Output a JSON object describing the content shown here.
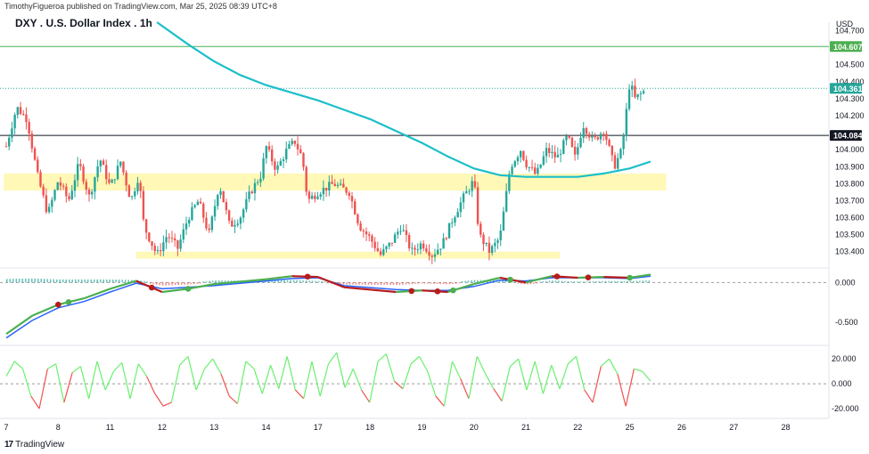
{
  "header": {
    "publisher": "TimothyFigueroa published on TradingView.com, Mar 25, 2025 08:39 UTC+8",
    "title": "DXY . U.S. Dollar Index . 1h",
    "currency": "USD",
    "brand": "TradingView",
    "brand_logo": "17"
  },
  "colors": {
    "up": "#26a69a",
    "down": "#ef5350",
    "ma": "#1bbfc9",
    "zone": "#fff59d",
    "hline_green": "#4caf50",
    "hline_black": "#131722",
    "macd_green": "#4caf50",
    "macd_red": "#b71c1c",
    "macd_blue": "#2962ff",
    "osc_green": "#69f06e",
    "osc_red": "#ef5350"
  },
  "chart_data": [
    {
      "type": "candlestick",
      "title": "DXY . U.S. Dollar Index . 1h",
      "ylim": [
        103.32,
        104.75
      ],
      "y_ticks": [
        "104.700",
        "104.500",
        "104.400",
        "104.300",
        "104.200",
        "104.000",
        "103.900",
        "103.800",
        "103.700",
        "103.600",
        "103.500",
        "103.400"
      ],
      "x_ticks": [
        "7",
        "8",
        "11",
        "12",
        "13",
        "14",
        "17",
        "18",
        "19",
        "20",
        "21",
        "22",
        "25",
        "26",
        "27",
        "28"
      ],
      "price_badges": [
        {
          "label": "104.607",
          "value": 104.607,
          "color": "#4caf50"
        },
        {
          "label": "104.361",
          "value": 104.361,
          "color": "#26a69a"
        },
        {
          "label": "104.084",
          "value": 104.084,
          "color": "#131722"
        }
      ],
      "hlines": [
        {
          "value": 104.607,
          "style": "solid",
          "color": "#4caf50"
        },
        {
          "value": 104.361,
          "style": "dotted",
          "color": "#26a69a"
        },
        {
          "value": 104.084,
          "style": "solid",
          "color": "#131722"
        }
      ],
      "zones": [
        {
          "from_day": -0.05,
          "to_day": 12.7,
          "low": 103.76,
          "high": 103.86
        },
        {
          "from_day": 2.5,
          "to_day": 10.65,
          "low": 103.36,
          "high": 103.4
        }
      ],
      "close_path": [
        [
          0,
          104.02
        ],
        [
          0.2,
          104.25
        ],
        [
          0.4,
          104.18
        ],
        [
          0.6,
          103.85
        ],
        [
          0.8,
          103.62
        ],
        [
          1.0,
          103.82
        ],
        [
          1.2,
          103.7
        ],
        [
          1.4,
          103.92
        ],
        [
          1.6,
          103.72
        ],
        [
          1.8,
          103.95
        ],
        [
          2.0,
          103.78
        ],
        [
          2.2,
          103.93
        ],
        [
          2.4,
          103.7
        ],
        [
          2.55,
          103.85
        ],
        [
          2.65,
          103.55
        ],
        [
          2.9,
          103.38
        ],
        [
          3.1,
          103.5
        ],
        [
          3.3,
          103.42
        ],
        [
          3.5,
          103.6
        ],
        [
          3.7,
          103.7
        ],
        [
          3.9,
          103.5
        ],
        [
          4.1,
          103.8
        ],
        [
          4.3,
          103.55
        ],
        [
          4.5,
          103.6
        ],
        [
          4.7,
          103.75
        ],
        [
          4.9,
          103.85
        ],
        [
          5.0,
          104.02
        ],
        [
          5.2,
          103.88
        ],
        [
          5.4,
          104.0
        ],
        [
          5.55,
          104.05
        ],
        [
          5.7,
          103.95
        ],
        [
          5.8,
          103.7
        ],
        [
          6.0,
          103.75
        ],
        [
          6.3,
          103.8
        ],
        [
          6.6,
          103.75
        ],
        [
          6.8,
          103.55
        ],
        [
          7.0,
          103.48
        ],
        [
          7.2,
          103.38
        ],
        [
          7.4,
          103.45
        ],
        [
          7.6,
          103.55
        ],
        [
          7.8,
          103.4
        ],
        [
          8.0,
          103.45
        ],
        [
          8.2,
          103.38
        ],
        [
          8.4,
          103.45
        ],
        [
          8.6,
          103.6
        ],
        [
          8.8,
          103.72
        ],
        [
          9.0,
          103.82
        ],
        [
          9.1,
          103.5
        ],
        [
          9.3,
          103.4
        ],
        [
          9.5,
          103.48
        ],
        [
          9.7,
          103.9
        ],
        [
          9.9,
          104.0
        ],
        [
          10.0,
          103.92
        ],
        [
          10.2,
          103.85
        ],
        [
          10.4,
          104.0
        ],
        [
          10.6,
          103.95
        ],
        [
          10.8,
          104.08
        ],
        [
          10.95,
          103.95
        ],
        [
          11.1,
          104.15
        ],
        [
          11.3,
          104.05
        ],
        [
          11.5,
          104.12
        ],
        [
          11.7,
          103.9
        ],
        [
          11.85,
          104.0
        ],
        [
          12.0,
          104.4
        ],
        [
          12.1,
          104.3
        ],
        [
          12.3,
          104.35
        ]
      ],
      "ma_path": [
        [
          2.9,
          104.75
        ],
        [
          3.5,
          104.62
        ],
        [
          4.0,
          104.52
        ],
        [
          4.5,
          104.44
        ],
        [
          5.0,
          104.38
        ],
        [
          6.0,
          104.29
        ],
        [
          7.0,
          104.18
        ],
        [
          8.0,
          104.04
        ],
        [
          8.5,
          103.96
        ],
        [
          9.0,
          103.89
        ],
        [
          9.5,
          103.85
        ],
        [
          10.0,
          103.84
        ],
        [
          10.5,
          103.84
        ],
        [
          11.0,
          103.84
        ],
        [
          11.5,
          103.86
        ],
        [
          12.0,
          103.89
        ],
        [
          12.4,
          103.93
        ]
      ],
      "series": [
        {
          "name": "DXY 1h candles"
        },
        {
          "name": "Moving average"
        }
      ]
    },
    {
      "type": "line",
      "name": "MACD-style oscillator",
      "ylim": [
        -0.75,
        0.15
      ],
      "y_ticks": [
        "0.000",
        "-0.500"
      ],
      "fast": [
        [
          0,
          -0.65
        ],
        [
          0.5,
          -0.42
        ],
        [
          1.0,
          -0.28
        ],
        [
          1.5,
          -0.2
        ],
        [
          2.0,
          -0.08
        ],
        [
          2.5,
          0.02
        ],
        [
          3.0,
          -0.12
        ],
        [
          3.5,
          -0.08
        ],
        [
          4.0,
          -0.02
        ],
        [
          5.0,
          0.04
        ],
        [
          5.5,
          0.08
        ],
        [
          6.0,
          0.07
        ],
        [
          6.5,
          -0.06
        ],
        [
          7.5,
          -0.12
        ],
        [
          8.0,
          -0.1
        ],
        [
          8.5,
          -0.12
        ],
        [
          9.0,
          -0.02
        ],
        [
          9.5,
          0.06
        ],
        [
          10.0,
          0.0
        ],
        [
          10.5,
          0.08
        ],
        [
          11.0,
          0.06
        ],
        [
          11.5,
          0.07
        ],
        [
          12.0,
          0.06
        ],
        [
          12.4,
          0.1
        ]
      ],
      "slow": [
        [
          0,
          -0.7
        ],
        [
          0.5,
          -0.48
        ],
        [
          1.0,
          -0.32
        ],
        [
          1.5,
          -0.24
        ],
        [
          2.0,
          -0.12
        ],
        [
          2.5,
          -0.01
        ],
        [
          3.0,
          -0.08
        ],
        [
          3.5,
          -0.06
        ],
        [
          4.0,
          -0.04
        ],
        [
          5.0,
          0.02
        ],
        [
          5.5,
          0.05
        ],
        [
          6.0,
          0.06
        ],
        [
          6.5,
          -0.04
        ],
        [
          7.5,
          -0.09
        ],
        [
          8.0,
          -0.1
        ],
        [
          8.5,
          -0.1
        ],
        [
          9.0,
          -0.05
        ],
        [
          9.5,
          0.03
        ],
        [
          10.0,
          0.02
        ],
        [
          10.5,
          0.06
        ],
        [
          11.0,
          0.06
        ],
        [
          11.5,
          0.06
        ],
        [
          12.0,
          0.05
        ],
        [
          12.4,
          0.08
        ]
      ],
      "cross_up": [
        1.2,
        3.5,
        8.6,
        9.7,
        12.0
      ],
      "cross_down": [
        1.0,
        2.8,
        5.8,
        7.8,
        8.3,
        10.6,
        11.2
      ]
    },
    {
      "type": "line",
      "name": "Momentum oscillator",
      "ylim": [
        -25,
        28
      ],
      "y_ticks": [
        "20.000",
        "0.000",
        "-20.000"
      ],
      "values": [
        6,
        18,
        12,
        -10,
        -20,
        12,
        16,
        -15,
        9,
        14,
        -12,
        18,
        -5,
        10,
        17,
        -12,
        16,
        6,
        -8,
        -18,
        -15,
        15,
        22,
        -5,
        12,
        20,
        8,
        -10,
        -16,
        18,
        12,
        -8,
        15,
        -4,
        22,
        -5,
        -12,
        18,
        -10,
        16,
        25,
        -3,
        12,
        -5,
        -15,
        18,
        24,
        2,
        -4,
        16,
        22,
        10,
        -10,
        -18,
        18,
        4,
        -12,
        22,
        8,
        -4,
        -14,
        14,
        20,
        -5,
        18,
        -8,
        15,
        -4,
        16,
        22,
        -5,
        -15,
        14,
        20,
        8,
        -18,
        12,
        10,
        2
      ]
    }
  ]
}
